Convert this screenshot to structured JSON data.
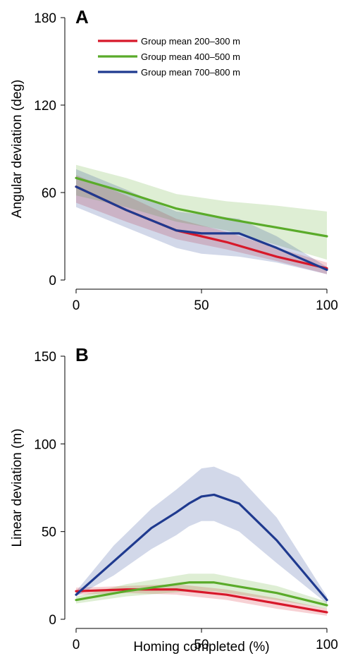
{
  "chart_data": [
    {
      "type": "line",
      "panel_label": "A",
      "ylabel": "Angular deviation (deg)",
      "xlabel": "",
      "xlim": [
        0,
        100
      ],
      "ylim": [
        0,
        180
      ],
      "xticks": [
        0,
        50,
        100
      ],
      "yticks": [
        0,
        60,
        120,
        180
      ],
      "legend_position": "top-center",
      "series": [
        {
          "name": "Group mean 200–300 m",
          "color": "#d7182a",
          "x": [
            0,
            20,
            40,
            60,
            80,
            100
          ],
          "y": [
            64,
            48,
            34,
            26,
            16,
            8
          ],
          "lower": [
            53,
            40,
            28,
            21,
            13,
            4
          ],
          "upper": [
            72,
            58,
            42,
            33,
            22,
            12
          ]
        },
        {
          "name": "Group mean 400–500 m",
          "color": "#5aab2a",
          "x": [
            0,
            20,
            40,
            60,
            80,
            100
          ],
          "y": [
            70,
            60,
            49,
            42,
            36,
            30
          ],
          "lower": [
            58,
            50,
            40,
            34,
            24,
            14
          ],
          "upper": [
            79,
            70,
            59,
            54,
            51,
            47
          ]
        },
        {
          "name": "Group mean 700–800 m",
          "color": "#1f3a8f",
          "x": [
            0,
            20,
            40,
            50,
            65,
            80,
            100
          ],
          "y": [
            64,
            48,
            34,
            32,
            32,
            22,
            7
          ],
          "lower": [
            50,
            36,
            22,
            18,
            16,
            12,
            4
          ],
          "upper": [
            76,
            62,
            47,
            45,
            42,
            30,
            9
          ]
        }
      ]
    },
    {
      "type": "line",
      "panel_label": "B",
      "ylabel": "Linear deviation (m)",
      "xlabel": "Homing completed (%)",
      "xlim": [
        0,
        100
      ],
      "ylim": [
        0,
        150
      ],
      "xticks": [
        0,
        50,
        100
      ],
      "yticks": [
        0,
        50,
        100,
        150
      ],
      "series": [
        {
          "name": "Group mean 200–300 m",
          "color": "#d7182a",
          "x": [
            0,
            20,
            40,
            60,
            80,
            100
          ],
          "y": [
            16,
            17,
            17,
            14,
            9,
            4
          ],
          "lower": [
            14,
            15,
            14,
            11,
            6,
            2
          ],
          "upper": [
            18,
            19,
            20,
            17,
            12,
            6
          ]
        },
        {
          "name": "Group mean 400–500 m",
          "color": "#5aab2a",
          "x": [
            0,
            20,
            45,
            55,
            80,
            100
          ],
          "y": [
            11,
            16,
            21,
            21,
            15,
            8
          ],
          "lower": [
            9,
            13,
            16,
            16,
            11,
            6
          ],
          "upper": [
            13,
            20,
            26,
            26,
            19,
            10
          ]
        },
        {
          "name": "Group mean 700–800 m",
          "color": "#1f3a8f",
          "x": [
            0,
            15,
            30,
            40,
            45,
            50,
            55,
            65,
            80,
            100
          ],
          "y": [
            14,
            33,
            52,
            61,
            66,
            70,
            71,
            66,
            45,
            11
          ],
          "lower": [
            13,
            25,
            40,
            48,
            53,
            56,
            56,
            50,
            32,
            9
          ],
          "upper": [
            16,
            42,
            63,
            74,
            80,
            86,
            87,
            81,
            58,
            13
          ]
        }
      ]
    }
  ]
}
